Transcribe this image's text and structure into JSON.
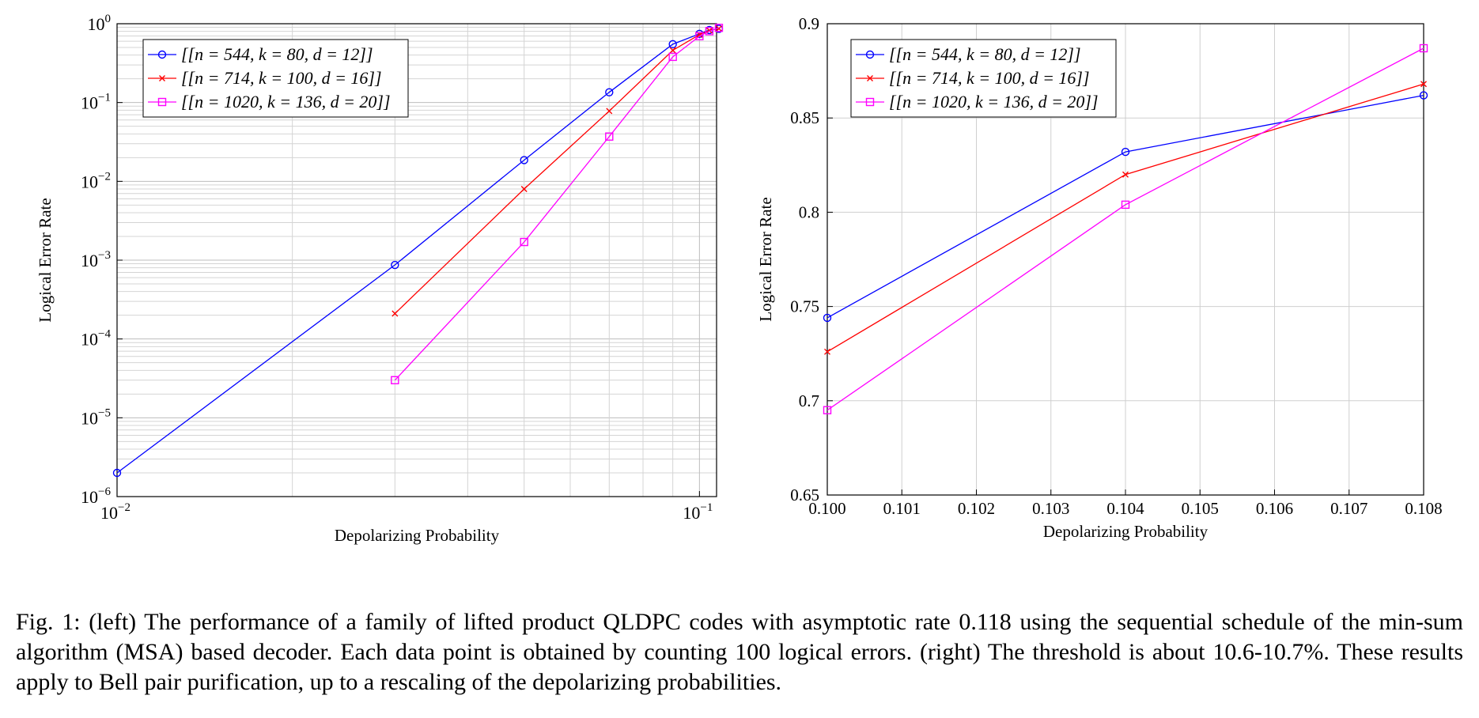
{
  "chart_data": [
    {
      "type": "line",
      "xscale": "log",
      "yscale": "log",
      "xlim": [
        0.01,
        0.107
      ],
      "ylim": [
        1e-06,
        1
      ],
      "xticks": [
        {
          "value": 0.01,
          "label": "10",
          "exp": "−2"
        },
        {
          "value": 0.1,
          "label": "10",
          "exp": "−1"
        }
      ],
      "yticks": [
        {
          "value": 1,
          "label": "10",
          "exp": "0"
        },
        {
          "value": 0.1,
          "label": "10",
          "exp": "−1"
        },
        {
          "value": 0.01,
          "label": "10",
          "exp": "−2"
        },
        {
          "value": 0.001,
          "label": "10",
          "exp": "−3"
        },
        {
          "value": 0.0001,
          "label": "10",
          "exp": "−4"
        },
        {
          "value": 1e-05,
          "label": "10",
          "exp": "−5"
        },
        {
          "value": 1e-06,
          "label": "10",
          "exp": "−6"
        }
      ],
      "xlabel": "Depolarizing Probability",
      "ylabel": "Logical Error Rate",
      "grid": true,
      "legend": "top-left",
      "series": [
        {
          "name": "[[n = 544, k = 80, d = 12]]",
          "color": "#0000ff",
          "marker": "circle",
          "x": [
            0.01,
            0.03,
            0.05,
            0.07,
            0.09,
            0.1,
            0.104,
            0.108
          ],
          "y": [
            2e-06,
            0.00087,
            0.0186,
            0.135,
            0.55,
            0.744,
            0.832,
            0.862
          ]
        },
        {
          "name": "[[n = 714, k = 100, d = 16]]",
          "color": "#ff0000",
          "marker": "x",
          "x": [
            0.03,
            0.05,
            0.07,
            0.09,
            0.1,
            0.104,
            0.108
          ],
          "y": [
            0.00021,
            0.008,
            0.078,
            0.46,
            0.726,
            0.82,
            0.868
          ]
        },
        {
          "name": "[[n = 1020, k = 136, d = 20]]",
          "color": "#ff00ff",
          "marker": "square",
          "x": [
            0.03,
            0.05,
            0.07,
            0.09,
            0.1,
            0.104,
            0.108
          ],
          "y": [
            3e-05,
            0.0017,
            0.037,
            0.38,
            0.695,
            0.804,
            0.887
          ]
        }
      ]
    },
    {
      "type": "line",
      "xlim": [
        0.1,
        0.108
      ],
      "ylim": [
        0.65,
        0.9
      ],
      "xticks": [
        "0.100",
        "0.101",
        "0.102",
        "0.103",
        "0.104",
        "0.105",
        "0.106",
        "0.107",
        "0.108"
      ],
      "yticks": [
        "0.65",
        "0.7",
        "0.75",
        "0.8",
        "0.85",
        "0.9"
      ],
      "xlabel": "Depolarizing Probability",
      "ylabel": "Logical Error Rate",
      "grid": true,
      "legend": "top-left",
      "series": [
        {
          "name": "[[n = 544, k = 80, d = 12]]",
          "color": "#0000ff",
          "marker": "circle",
          "x": [
            0.1,
            0.104,
            0.108
          ],
          "y": [
            0.744,
            0.832,
            0.862
          ]
        },
        {
          "name": "[[n = 714, k = 100, d = 16]]",
          "color": "#ff0000",
          "marker": "x",
          "x": [
            0.1,
            0.104,
            0.108
          ],
          "y": [
            0.726,
            0.82,
            0.868
          ]
        },
        {
          "name": "[[n = 1020, k = 136, d = 20]]",
          "color": "#ff00ff",
          "marker": "square",
          "x": [
            0.1,
            0.104,
            0.108
          ],
          "y": [
            0.695,
            0.804,
            0.887
          ]
        }
      ]
    }
  ],
  "caption": "Fig. 1: (left) The performance of a family of lifted product QLDPC codes with asymptotic rate 0.118 using the sequential schedule of the min-sum algorithm (MSA) based decoder. Each data point is obtained by counting 100 logical errors. (right) The threshold is about 10.6-10.7%. These results apply to Bell pair purification, up to a rescaling of the depolarizing probabilities."
}
